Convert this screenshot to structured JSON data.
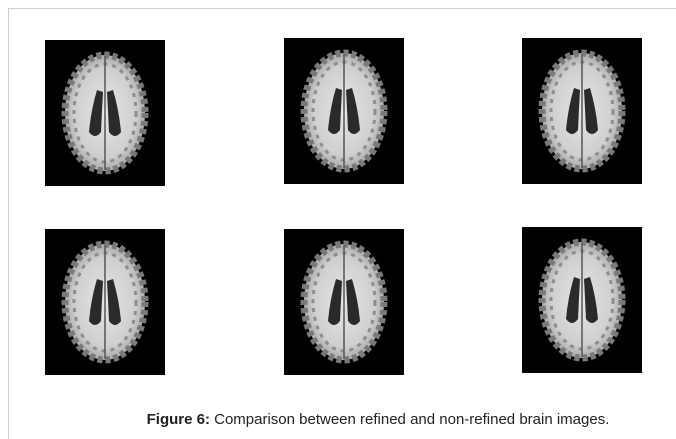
{
  "caption": {
    "label": "Figure 6:",
    "text": "Comparison between refined and non-refined brain images."
  }
}
